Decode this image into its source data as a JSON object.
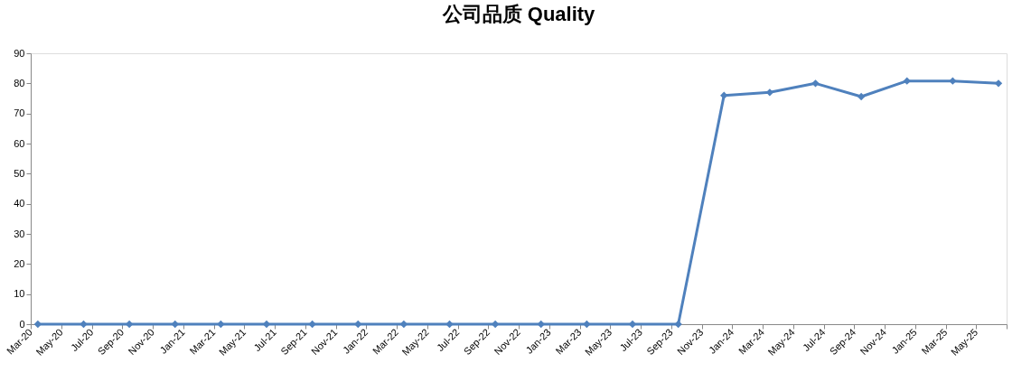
{
  "chart_data": {
    "type": "line",
    "title": "公司品质 Quality",
    "x": [
      "2020-03-15",
      "2020-06-15",
      "2020-09-15",
      "2020-12-15",
      "2021-03-15",
      "2021-06-15",
      "2021-09-15",
      "2021-12-15",
      "2022-03-15",
      "2022-06-15",
      "2022-09-15",
      "2022-12-15",
      "2023-03-15",
      "2023-06-15",
      "2023-09-15",
      "2023-12-15",
      "2024-03-15",
      "2024-06-15",
      "2024-09-15",
      "2024-12-15",
      "2025-03-15",
      "2025-06-15"
    ],
    "series": [
      {
        "color": "#4f81bd",
        "values": [
          0,
          0,
          0,
          0,
          0,
          0,
          0,
          0,
          0,
          0,
          0,
          0,
          0,
          0,
          0,
          76,
          77,
          80,
          75.6,
          80.8,
          80.8,
          80
        ]
      }
    ],
    "xlim": [
      "2020-03",
      "2025-07"
    ],
    "xticks": [
      {
        "value": "2020-03",
        "label": "Mar-20"
      },
      {
        "value": "2020-05",
        "label": "May-20"
      },
      {
        "value": "2020-07",
        "label": "Jul-20"
      },
      {
        "value": "2020-09",
        "label": "Sep-20"
      },
      {
        "value": "2020-11",
        "label": "Nov-20"
      },
      {
        "value": "2021-01",
        "label": "Jan-21"
      },
      {
        "value": "2021-03",
        "label": "Mar-21"
      },
      {
        "value": "2021-05",
        "label": "May-21"
      },
      {
        "value": "2021-07",
        "label": "Jul-21"
      },
      {
        "value": "2021-09",
        "label": "Sep-21"
      },
      {
        "value": "2021-11",
        "label": "Nov-21"
      },
      {
        "value": "2022-01",
        "label": "Jan-22"
      },
      {
        "value": "2022-03",
        "label": "Mar-22"
      },
      {
        "value": "2022-05",
        "label": "May-22"
      },
      {
        "value": "2022-07",
        "label": "Jul-22"
      },
      {
        "value": "2022-09",
        "label": "Sep-22"
      },
      {
        "value": "2022-11",
        "label": "Nov-22"
      },
      {
        "value": "2023-01",
        "label": "Jan-23"
      },
      {
        "value": "2023-03",
        "label": "Mar-23"
      },
      {
        "value": "2023-05",
        "label": "May-23"
      },
      {
        "value": "2023-07",
        "label": "Jul-23"
      },
      {
        "value": "2023-09",
        "label": "Sep-23"
      },
      {
        "value": "2023-11",
        "label": "Nov-23"
      },
      {
        "value": "2024-01",
        "label": "Jan-24"
      },
      {
        "value": "2024-03",
        "label": "Mar-24"
      },
      {
        "value": "2024-05",
        "label": "May-24"
      },
      {
        "value": "2024-07",
        "label": "Jul-24"
      },
      {
        "value": "2024-09",
        "label": "Sep-24"
      },
      {
        "value": "2024-11",
        "label": "Nov-24"
      },
      {
        "value": "2025-01",
        "label": "Jan-25"
      },
      {
        "value": "2025-03",
        "label": "Mar-25"
      },
      {
        "value": "2025-05",
        "label": "May-25"
      },
      {
        "value": "2025-07",
        "label": null
      }
    ],
    "ylim": [
      0,
      90
    ],
    "yticks": [
      0,
      10,
      20,
      30,
      40,
      50,
      60,
      70,
      80,
      90
    ],
    "grid": false,
    "marker": "diamond",
    "line_style": "solid"
  }
}
